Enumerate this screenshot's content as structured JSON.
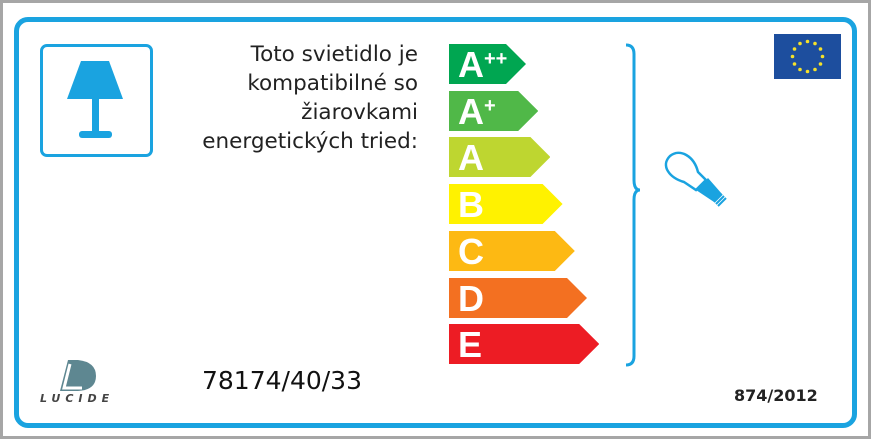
{
  "label_text": "Toto svietidlo je kompatibilné so žiarovkami energetických tried:",
  "classes": [
    {
      "letter": "A",
      "sup": "++",
      "color": "#00a651"
    },
    {
      "letter": "A",
      "sup": "+",
      "color": "#50b848"
    },
    {
      "letter": "A",
      "sup": "",
      "color": "#bed630"
    },
    {
      "letter": "B",
      "sup": "",
      "color": "#fff200"
    },
    {
      "letter": "C",
      "sup": "",
      "color": "#fdb913"
    },
    {
      "letter": "D",
      "sup": "",
      "color": "#f37021"
    },
    {
      "letter": "E",
      "sup": "",
      "color": "#ed1c24"
    }
  ],
  "model_number": "78174/40/33",
  "regulation": "874/2012",
  "brand": "LUCIDE",
  "accent_color": "#1aa3e0",
  "icons": [
    "table-lamp-icon",
    "light-bulb-icon",
    "eu-flag-icon",
    "lucide-logo"
  ]
}
